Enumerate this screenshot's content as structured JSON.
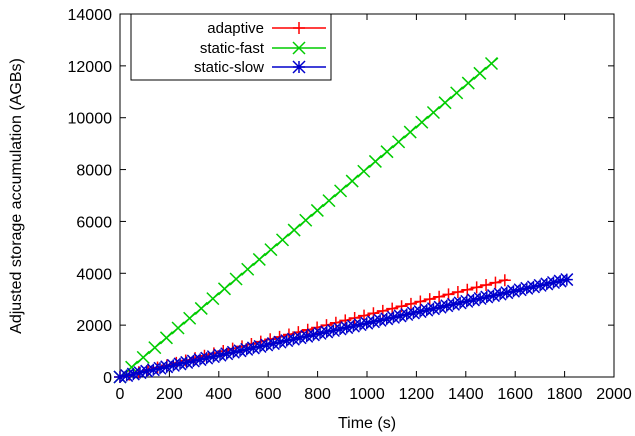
{
  "chart_data": {
    "type": "line",
    "title": "",
    "xlabel": "Time (s)",
    "ylabel": "Adjusted storage accumulation (AGBs)",
    "xlim": [
      0,
      2000
    ],
    "ylim": [
      0,
      14000
    ],
    "xticks": [
      "0",
      "200",
      "400",
      "600",
      "800",
      "1000",
      "1200",
      "1400",
      "1600",
      "1800",
      "2000"
    ],
    "yticks": [
      "0",
      "2000",
      "4000",
      "6000",
      "8000",
      "10000",
      "12000",
      "14000"
    ],
    "grid": false,
    "legend_position": "top-left",
    "series": [
      {
        "name": "adaptive",
        "color": "#ff0000",
        "marker": "plus",
        "x": [
          0,
          1570
        ],
        "y": [
          0,
          3760
        ],
        "marker_spacing": 38
      },
      {
        "name": "static-fast",
        "color": "#00cc00",
        "marker": "cross",
        "x": [
          0,
          1530
        ],
        "y": [
          0,
          12300
        ],
        "marker_spacing": 47
      },
      {
        "name": "static-slow",
        "color": "#0000cc",
        "marker": "star",
        "x": [
          0,
          1820
        ],
        "y": [
          0,
          3780
        ],
        "marker_spacing": 27
      }
    ]
  }
}
